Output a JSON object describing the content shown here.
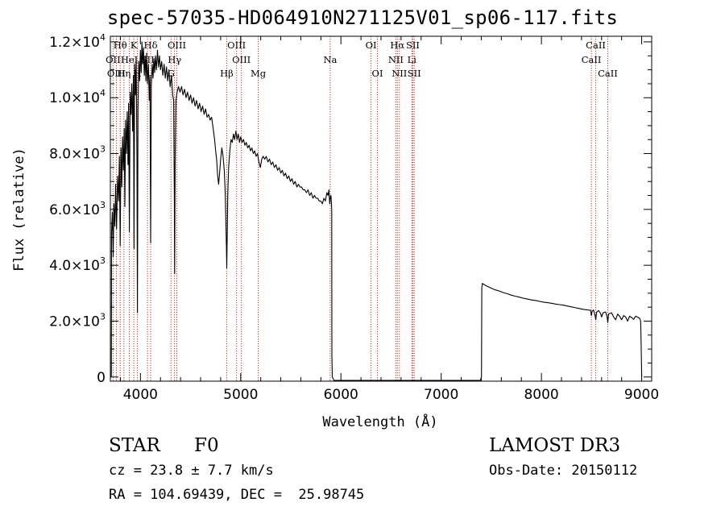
{
  "chart_data": {
    "type": "line",
    "title": "spec-57035-HD064910N271125V01_sp06-117.fits",
    "xlabel": "Wavelength (Å)",
    "ylabel": "Flux (relative)",
    "xlim": [
      3700,
      9100
    ],
    "ylim": [
      -150,
      12200
    ],
    "x_ticks": [
      {
        "value": 4000,
        "label": "4000"
      },
      {
        "value": 5000,
        "label": "5000"
      },
      {
        "value": 6000,
        "label": "6000"
      },
      {
        "value": 7000,
        "label": "7000"
      },
      {
        "value": 8000,
        "label": "8000"
      },
      {
        "value": 9000,
        "label": "9000"
      }
    ],
    "y_ticks": [
      {
        "value": 0,
        "mant": "0",
        "exp": ""
      },
      {
        "value": 2000,
        "mant": "2.0×10",
        "exp": "3"
      },
      {
        "value": 4000,
        "mant": "4.0×10",
        "exp": "3"
      },
      {
        "value": 6000,
        "mant": "6.0×10",
        "exp": "3"
      },
      {
        "value": 8000,
        "mant": "8.0×10",
        "exp": "3"
      },
      {
        "value": 10000,
        "mant": "1.0×10",
        "exp": "4"
      },
      {
        "value": 12000,
        "mant": "1.2×10",
        "exp": "4"
      }
    ],
    "series": [
      {
        "name": "flux",
        "points": [
          [
            3710,
            0
          ],
          [
            3712,
            5200
          ],
          [
            3720,
            5900
          ],
          [
            3728,
            4300
          ],
          [
            3735,
            6200
          ],
          [
            3745,
            5400
          ],
          [
            3752,
            6900
          ],
          [
            3762,
            5300
          ],
          [
            3772,
            7200
          ],
          [
            3782,
            6300
          ],
          [
            3790,
            7900
          ],
          [
            3798,
            4700
          ],
          [
            3806,
            8200
          ],
          [
            3814,
            6800
          ],
          [
            3822,
            8600
          ],
          [
            3830,
            7400
          ],
          [
            3838,
            8900
          ],
          [
            3845,
            6100
          ],
          [
            3852,
            9200
          ],
          [
            3860,
            8000
          ],
          [
            3868,
            9500
          ],
          [
            3876,
            7600
          ],
          [
            3882,
            9800
          ],
          [
            3890,
            5200
          ],
          [
            3898,
            10200
          ],
          [
            3906,
            9400
          ],
          [
            3914,
            10500
          ],
          [
            3922,
            8800
          ],
          [
            3930,
            10800
          ],
          [
            3936,
            4600
          ],
          [
            3942,
            11200
          ],
          [
            3950,
            10100
          ],
          [
            3958,
            11400
          ],
          [
            3965,
            7800
          ],
          [
            3970,
            2300
          ],
          [
            3976,
            9600
          ],
          [
            3984,
            11300
          ],
          [
            3992,
            10600
          ],
          [
            4000,
            11700
          ],
          [
            4008,
            10900
          ],
          [
            4015,
            12000
          ],
          [
            4022,
            11200
          ],
          [
            4030,
            11800
          ],
          [
            4038,
            10800
          ],
          [
            4046,
            11500
          ],
          [
            4054,
            10600
          ],
          [
            4062,
            11600
          ],
          [
            4070,
            10500
          ],
          [
            4080,
            11200
          ],
          [
            4088,
            9900
          ],
          [
            4095,
            10800
          ],
          [
            4102,
            4800
          ],
          [
            4108,
            10400
          ],
          [
            4118,
            11200
          ],
          [
            4126,
            10700
          ],
          [
            4134,
            11400
          ],
          [
            4142,
            10900
          ],
          [
            4150,
            11500
          ],
          [
            4160,
            11000
          ],
          [
            4170,
            11700
          ],
          [
            4180,
            11100
          ],
          [
            4190,
            11500
          ],
          [
            4200,
            11000
          ],
          [
            4212,
            11300
          ],
          [
            4224,
            10800
          ],
          [
            4236,
            11200
          ],
          [
            4248,
            10700
          ],
          [
            4260,
            11100
          ],
          [
            4272,
            10600
          ],
          [
            4284,
            11000
          ],
          [
            4296,
            10400
          ],
          [
            4310,
            10800
          ],
          [
            4322,
            10100
          ],
          [
            4332,
            9900
          ],
          [
            4338,
            6500
          ],
          [
            4341,
            3700
          ],
          [
            4346,
            7600
          ],
          [
            4354,
            9900
          ],
          [
            4366,
            10200
          ],
          [
            4380,
            10400
          ],
          [
            4395,
            10200
          ],
          [
            4410,
            10400
          ],
          [
            4425,
            10100
          ],
          [
            4440,
            10300
          ],
          [
            4455,
            10000
          ],
          [
            4470,
            10200
          ],
          [
            4485,
            9900
          ],
          [
            4500,
            10100
          ],
          [
            4515,
            9800
          ],
          [
            4530,
            10000
          ],
          [
            4545,
            9700
          ],
          [
            4560,
            9900
          ],
          [
            4575,
            9600
          ],
          [
            4590,
            9800
          ],
          [
            4605,
            9500
          ],
          [
            4620,
            9700
          ],
          [
            4635,
            9400
          ],
          [
            4650,
            9600
          ],
          [
            4665,
            9300
          ],
          [
            4680,
            9400
          ],
          [
            4695,
            9200
          ],
          [
            4710,
            9300
          ],
          [
            4725,
            8900
          ],
          [
            4740,
            8500
          ],
          [
            4750,
            8100
          ],
          [
            4760,
            7800
          ],
          [
            4770,
            7200
          ],
          [
            4780,
            6900
          ],
          [
            4790,
            7300
          ],
          [
            4800,
            7800
          ],
          [
            4812,
            8200
          ],
          [
            4824,
            7900
          ],
          [
            4836,
            7400
          ],
          [
            4846,
            6600
          ],
          [
            4852,
            5500
          ],
          [
            4858,
            4600
          ],
          [
            4861,
            3900
          ],
          [
            4866,
            5100
          ],
          [
            4872,
            6600
          ],
          [
            4880,
            7500
          ],
          [
            4892,
            8100
          ],
          [
            4904,
            8500
          ],
          [
            4916,
            8400
          ],
          [
            4928,
            8700
          ],
          [
            4940,
            8500
          ],
          [
            4952,
            8800
          ],
          [
            4964,
            8500
          ],
          [
            4976,
            8700
          ],
          [
            4988,
            8400
          ],
          [
            5000,
            8600
          ],
          [
            5014,
            8400
          ],
          [
            5028,
            8500
          ],
          [
            5042,
            8300
          ],
          [
            5056,
            8400
          ],
          [
            5070,
            8200
          ],
          [
            5084,
            8300
          ],
          [
            5098,
            8100
          ],
          [
            5112,
            8200
          ],
          [
            5126,
            8000
          ],
          [
            5140,
            8100
          ],
          [
            5154,
            7900
          ],
          [
            5168,
            8000
          ],
          [
            5182,
            7700
          ],
          [
            5196,
            7500
          ],
          [
            5210,
            7800
          ],
          [
            5224,
            7900
          ],
          [
            5240,
            7800
          ],
          [
            5256,
            7900
          ],
          [
            5272,
            7700
          ],
          [
            5288,
            7800
          ],
          [
            5304,
            7600
          ],
          [
            5320,
            7700
          ],
          [
            5336,
            7500
          ],
          [
            5352,
            7600
          ],
          [
            5368,
            7400
          ],
          [
            5384,
            7500
          ],
          [
            5400,
            7300
          ],
          [
            5416,
            7400
          ],
          [
            5432,
            7200
          ],
          [
            5448,
            7300
          ],
          [
            5464,
            7100
          ],
          [
            5480,
            7200
          ],
          [
            5496,
            7000
          ],
          [
            5512,
            7100
          ],
          [
            5528,
            6900
          ],
          [
            5544,
            7000
          ],
          [
            5560,
            6800
          ],
          [
            5576,
            6900
          ],
          [
            5592,
            6800
          ],
          [
            5608,
            6800
          ],
          [
            5624,
            6700
          ],
          [
            5640,
            6700
          ],
          [
            5656,
            6600
          ],
          [
            5672,
            6700
          ],
          [
            5688,
            6500
          ],
          [
            5704,
            6600
          ],
          [
            5720,
            6400
          ],
          [
            5736,
            6500
          ],
          [
            5752,
            6400
          ],
          [
            5768,
            6400
          ],
          [
            5784,
            6300
          ],
          [
            5800,
            6300
          ],
          [
            5815,
            6200
          ],
          [
            5830,
            6400
          ],
          [
            5845,
            6300
          ],
          [
            5860,
            6600
          ],
          [
            5872,
            6500
          ],
          [
            5880,
            6700
          ],
          [
            5888,
            6200
          ],
          [
            5893,
            6400
          ],
          [
            5900,
            6500
          ],
          [
            5904,
            6300
          ],
          [
            5908,
            6000
          ],
          [
            5910,
            800
          ],
          [
            5914,
            0
          ],
          [
            5930,
            -120
          ],
          [
            6000,
            -120
          ],
          [
            6500,
            -120
          ],
          [
            7000,
            -120
          ],
          [
            7390,
            -120
          ],
          [
            7402,
            0
          ],
          [
            7405,
            3200
          ],
          [
            7412,
            3350
          ],
          [
            7440,
            3280
          ],
          [
            7470,
            3230
          ],
          [
            7500,
            3180
          ],
          [
            7540,
            3120
          ],
          [
            7580,
            3080
          ],
          [
            7620,
            3020
          ],
          [
            7660,
            2980
          ],
          [
            7700,
            2930
          ],
          [
            7740,
            2890
          ],
          [
            7780,
            2860
          ],
          [
            7820,
            2820
          ],
          [
            7860,
            2790
          ],
          [
            7900,
            2760
          ],
          [
            7940,
            2740
          ],
          [
            7980,
            2710
          ],
          [
            8020,
            2680
          ],
          [
            8060,
            2660
          ],
          [
            8100,
            2640
          ],
          [
            8140,
            2610
          ],
          [
            8180,
            2590
          ],
          [
            8220,
            2570
          ],
          [
            8260,
            2540
          ],
          [
            8300,
            2510
          ],
          [
            8340,
            2480
          ],
          [
            8380,
            2450
          ],
          [
            8420,
            2420
          ],
          [
            8460,
            2400
          ],
          [
            8490,
            2390
          ],
          [
            8498,
            2200
          ],
          [
            8505,
            2350
          ],
          [
            8520,
            2400
          ],
          [
            8535,
            2200
          ],
          [
            8542,
            2050
          ],
          [
            8550,
            2320
          ],
          [
            8570,
            2380
          ],
          [
            8590,
            2280
          ],
          [
            8600,
            2150
          ],
          [
            8615,
            2300
          ],
          [
            8640,
            2330
          ],
          [
            8655,
            2150
          ],
          [
            8662,
            1950
          ],
          [
            8670,
            2250
          ],
          [
            8700,
            2300
          ],
          [
            8720,
            2150
          ],
          [
            8740,
            2050
          ],
          [
            8760,
            2250
          ],
          [
            8780,
            2180
          ],
          [
            8800,
            2050
          ],
          [
            8820,
            2200
          ],
          [
            8840,
            2150
          ],
          [
            8860,
            2000
          ],
          [
            8880,
            2180
          ],
          [
            8900,
            2130
          ],
          [
            8920,
            2060
          ],
          [
            8940,
            2180
          ],
          [
            8960,
            2140
          ],
          [
            8980,
            2100
          ],
          [
            8990,
            2000
          ],
          [
            8995,
            1200
          ],
          [
            9000,
            0
          ]
        ]
      }
    ],
    "lines": [
      {
        "label": "Hθ",
        "wl": 3798,
        "row": 0
      },
      {
        "label": "K",
        "wl": 3934,
        "row": 0
      },
      {
        "label": "Hδ",
        "wl": 4102,
        "row": 0
      },
      {
        "label": "OIII",
        "wl": 4363,
        "row": 0
      },
      {
        "label": "OIII",
        "wl": 4959,
        "row": 0
      },
      {
        "label": "OI",
        "wl": 6300,
        "row": 0
      },
      {
        "label": "Hα",
        "wl": 6563,
        "row": 0
      },
      {
        "label": "SII",
        "wl": 6717,
        "row": 0
      },
      {
        "label": "CaII",
        "wl": 8542,
        "row": 0
      },
      {
        "label": "OII",
        "wl": 3727,
        "row": 1
      },
      {
        "label": "HeI",
        "wl": 3889,
        "row": 1
      },
      {
        "label": "SII",
        "wl": 4071,
        "row": 1
      },
      {
        "label": "Hγ",
        "wl": 4340,
        "row": 1
      },
      {
        "label": "OIII",
        "wl": 5007,
        "row": 1
      },
      {
        "label": "Na",
        "wl": 5893,
        "row": 1
      },
      {
        "label": "NII",
        "wl": 6548,
        "row": 1
      },
      {
        "label": "Li",
        "wl": 6708,
        "row": 1
      },
      {
        "label": "CaII",
        "wl": 8498,
        "row": 1
      },
      {
        "label": "OIII",
        "wl": 3760,
        "row": 2
      },
      {
        "label": "Hη",
        "wl": 3835,
        "row": 2
      },
      {
        "label": "H",
        "wl": 3970,
        "row": 2
      },
      {
        "label": "G",
        "wl": 4305,
        "row": 2
      },
      {
        "label": "Hβ",
        "wl": 4861,
        "row": 2
      },
      {
        "label": "Mg",
        "wl": 5175,
        "row": 2
      },
      {
        "label": "OI",
        "wl": 6364,
        "row": 2
      },
      {
        "label": "NII",
        "wl": 6583,
        "row": 2
      },
      {
        "label": "SII",
        "wl": 6731,
        "row": 2
      },
      {
        "label": "CaII",
        "wl": 8662,
        "row": 2
      }
    ]
  },
  "info": {
    "class_label": "STAR",
    "subclass": "F0",
    "cz": "cz = 23.8 ± 7.7 km/s",
    "coords": "RA = 104.69439, DEC =  25.98745",
    "survey": "LAMOST DR3",
    "obs_date": "Obs-Date: 20150112"
  },
  "colors": {
    "axes": "#000000",
    "spectrum": "#000000",
    "lines": "#c0392b"
  }
}
